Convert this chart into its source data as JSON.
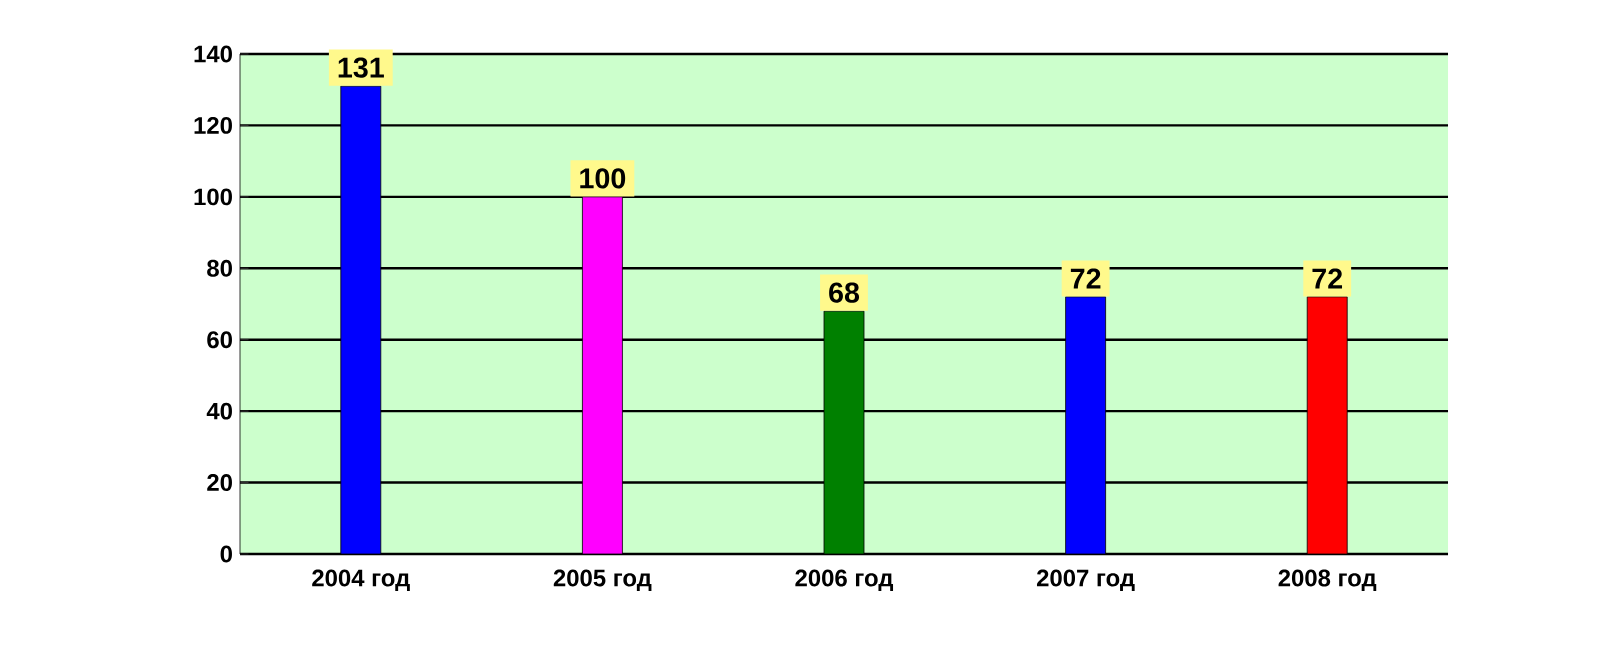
{
  "chart_data": {
    "type": "bar",
    "categories": [
      "2004 год",
      "2005 год",
      "2006 год",
      "2007 год",
      "2008 год"
    ],
    "values": [
      131,
      100,
      68,
      72,
      72
    ],
    "colors": [
      "#0000ff",
      "#ff00ff",
      "#008000",
      "#0000ff",
      "#ff0000"
    ],
    "ylim": [
      0,
      140
    ],
    "yticks": [
      0,
      20,
      40,
      60,
      80,
      100,
      120,
      140
    ],
    "grid": "y",
    "data_labels": true
  }
}
